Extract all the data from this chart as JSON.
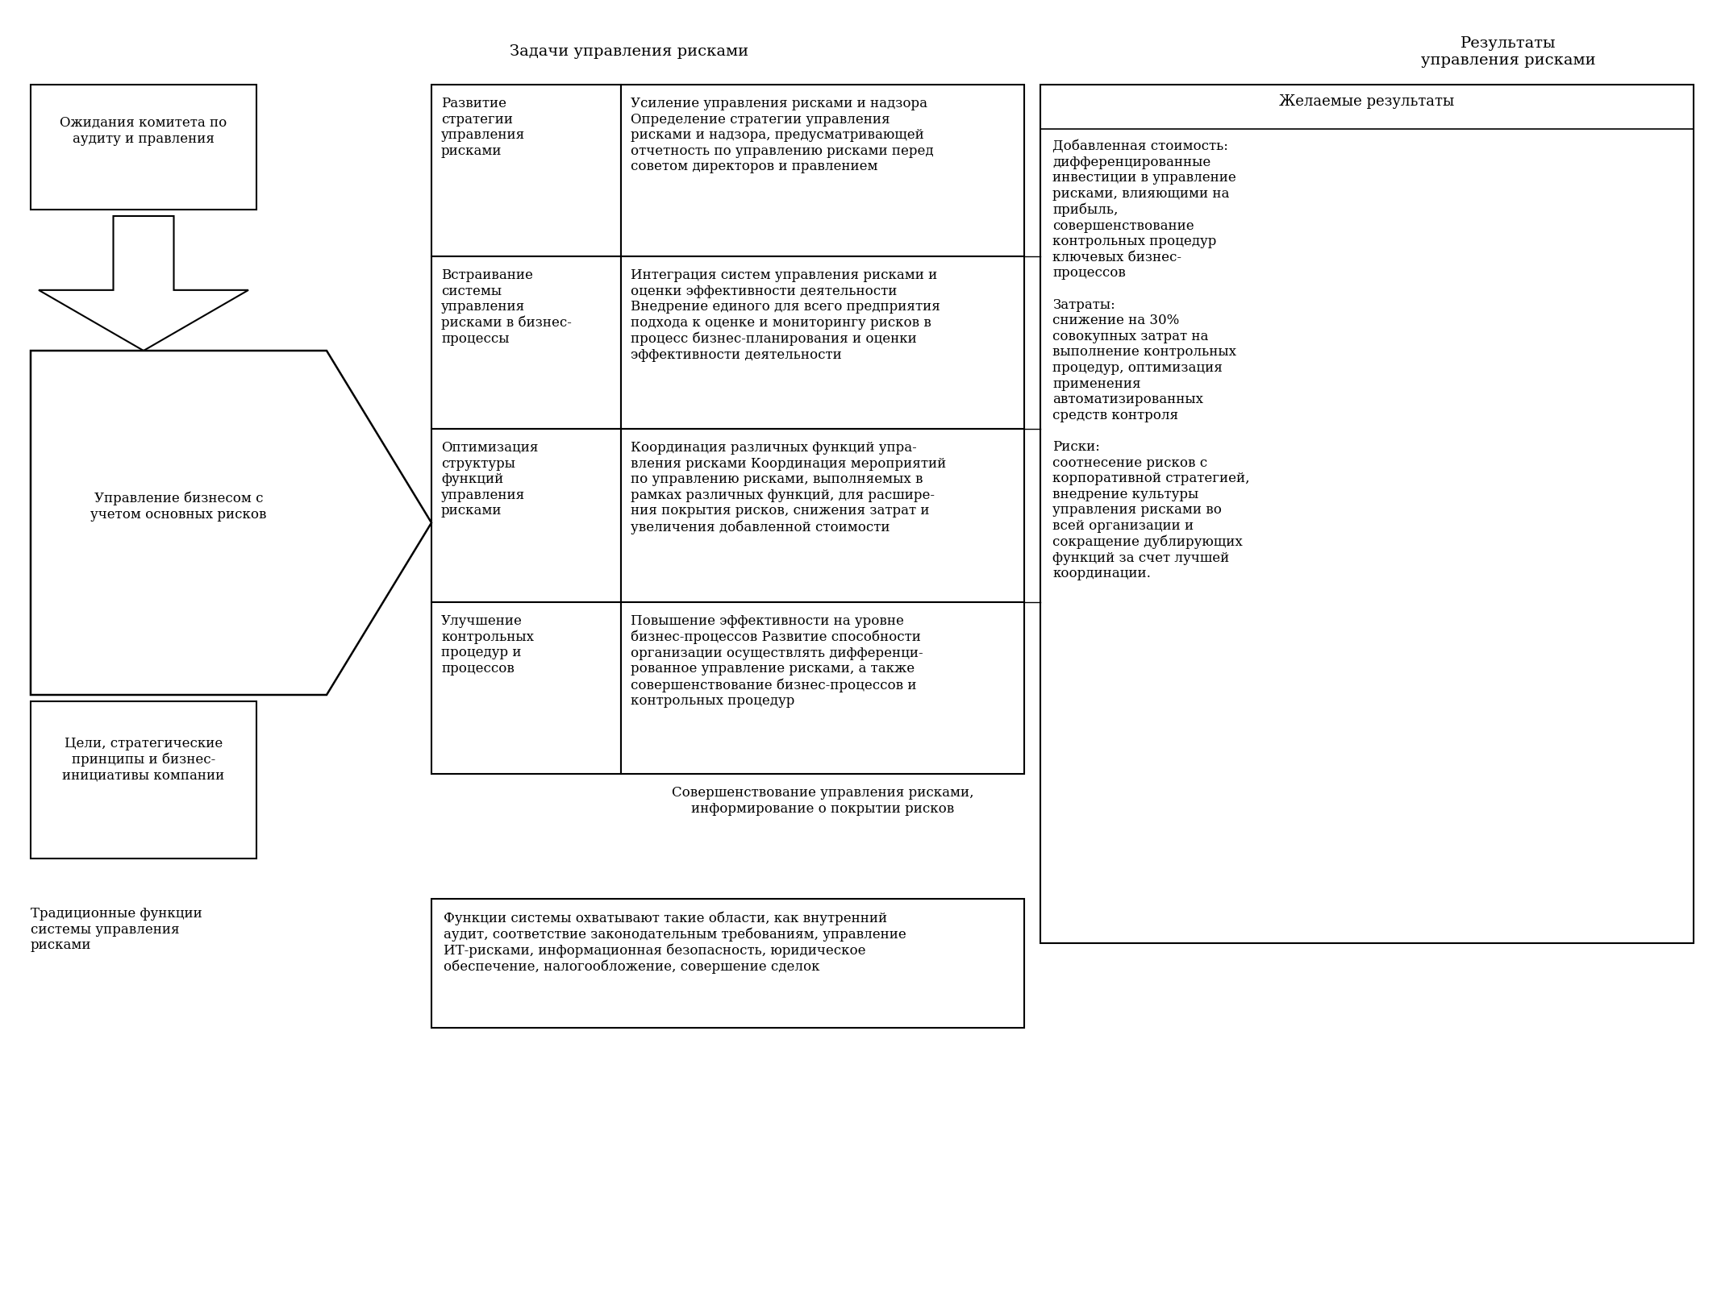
{
  "bg_color": "#ffffff",
  "title_zadachi": "Задачи управления рисками",
  "title_rezultaty": "Результаты\nуправления рисками",
  "left_box1_text": "Ожидания комитета по\nаудиту и правления",
  "left_box2_text": "Управление бизнесом с\nучетом основных рисков",
  "left_box3_text": "Цели, стратегические\nпринципы и бизнес-\nинициативы компании",
  "bottom_left_text": "Традиционные функции\nсистемы управления\nрисками",
  "table_col1": [
    "Развитие\nстратегии\nуправления\nрисками",
    "Встраивание\nсистемы\nуправления\nрисками в бизнес-\nпроцессы",
    "Оптимизация\nструктуры\nфункций\nуправления\nрисками",
    "Улучшение\nконтрольных\nпроцедур и\nпроцессов"
  ],
  "table_col2": [
    "Усиление управления рисками и надзора\nОпределение стратегии управления\nрисками и надзора, предусматривающей\nотчетность по управлению рисками перед\nсоветом директоров и правлением",
    "Интеграция систем управления рисками и\nоценки эффективности деятельности\nВнедрение единого для всего предприятия\nподхода к оценке и мониторингу рисков в\nпроцесс бизнес-планирования и оценки\nэффективности деятельности",
    "Координация различных функций упра-\nвления рисками Координация мероприятий\nпо управлению рисками, выполняемых в\nрамках различных функций, для расшире-\nния покрытия рисков, снижения затрат и\nувеличения добавленной стоимости",
    "Повышение эффективности на уровне\nбизнес-процессов Развитие способности\nорганизации осуществлять дифференци-\nрованное управление рисками, а также\nсовершенствование бизнес-процессов и\nконтрольных процедур"
  ],
  "bottom_table_text": "Совершенствование управления рисками,\nинформирование о покрытии рисков",
  "bottom_box_text": "Функции системы охватывают такие области, как внутренний\nаудит, соответствие законодательным требованиям, управление\nИТ-рисками, информационная безопасность, юридическое\nобеспечение, налогообложение, совершение сделок",
  "right_box_title": "Желаемые результаты",
  "right_box_text": "Добавленная стоимость:\nдифференцированные\nинвестиции в управление\nрисками, влияющими на\nприбыль,\nсовершенствование\nконтрольных процедур\nключевых бизнес-\nпроцессов\n\nЗатраты:\nснижение на 30%\nсовокупных затрат на\nвыполнение контрольных\nпроцедур, оптимизация\nприменения\nавтоматизированных\nсредств контроля\n\nРиски:\nсоотнесение рисков с\nкорпоративной стратегией,\nвнедрение культуры\nуправления рисками во\nвсей организации и\nсокращение дублирующих\nфункций за счет лучшей\nкоординации."
}
